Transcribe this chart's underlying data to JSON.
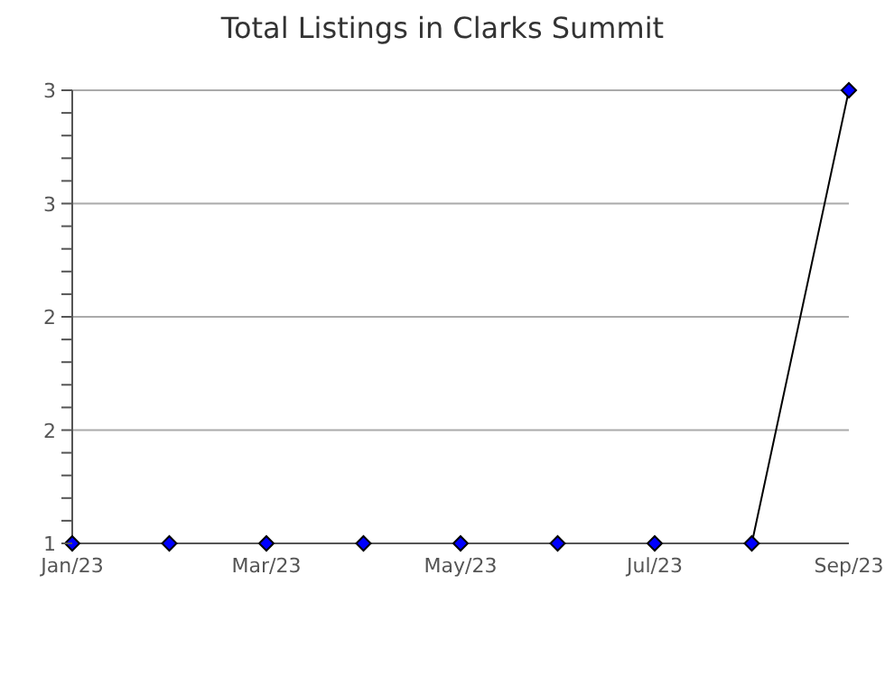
{
  "chart_data": {
    "type": "line",
    "title": "Total Listings in Clarks Summit",
    "categories": [
      "Jan/23",
      null,
      "Mar/23",
      null,
      "May/23",
      null,
      "Jul/23",
      null,
      "Sep/23"
    ],
    "series": [
      {
        "color": "#000000",
        "values": [
          1,
          1,
          1,
          1,
          1,
          1,
          1,
          1,
          3
        ]
      }
    ],
    "ylim": [
      1,
      3
    ],
    "yticks": [
      1,
      {
        "value": 1.1,
        "label": null
      },
      {
        "value": 1.2,
        "label": null
      },
      {
        "value": 1.3,
        "label": null
      },
      {
        "value": 1.4,
        "label": null
      },
      {
        "value": 1.5,
        "label": "2"
      },
      {
        "value": 1.6,
        "label": null
      },
      {
        "value": 1.7,
        "label": null
      },
      {
        "value": 1.8,
        "label": null
      },
      {
        "value": 1.9,
        "label": null
      },
      2,
      {
        "value": 2.1,
        "label": null
      },
      {
        "value": 2.2,
        "label": null
      },
      {
        "value": 2.3,
        "label": null
      },
      {
        "value": 2.4,
        "label": null
      },
      {
        "value": 2.5,
        "label": "3"
      },
      {
        "value": 2.6,
        "label": null
      },
      {
        "value": 2.7,
        "label": null
      },
      {
        "value": 2.8,
        "label": null
      },
      {
        "value": 2.9,
        "label": null
      },
      3
    ],
    "grid": "y",
    "marker": "diamond",
    "line_style": "solid",
    "legend": false
  }
}
